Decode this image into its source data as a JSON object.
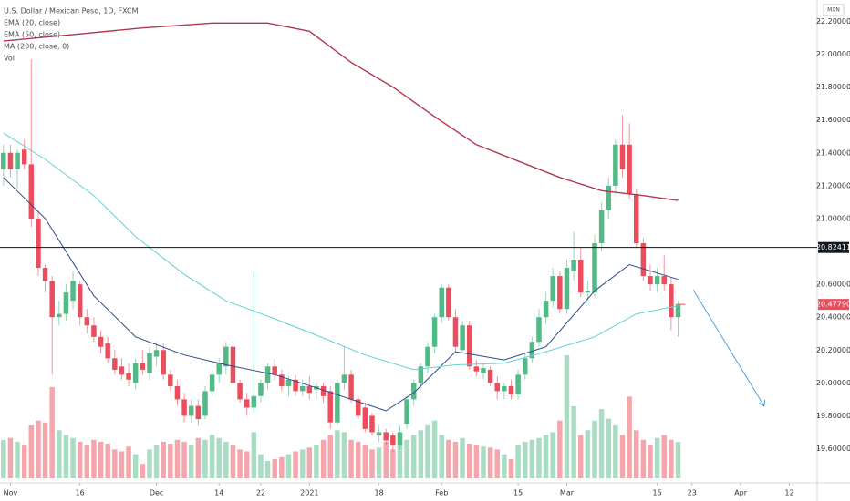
{
  "chart_data": {
    "type": "candlestick",
    "title": "U.S. Dollar / Mexican Peso, 1D, FXCM",
    "currency": "MXN",
    "volume_label": "Vol",
    "up_color": "#53b987",
    "down_color": "#eb4d5c",
    "open": [
      21.3,
      21.4,
      21.3,
      21.42,
      21.33,
      21.0,
      20.7,
      20.62,
      20.4,
      20.42,
      20.5,
      20.6,
      20.4,
      20.35,
      20.28,
      20.24,
      20.15,
      20.1,
      20.06,
      20.0,
      20.12,
      20.06,
      20.16,
      20.2,
      20.05,
      19.98,
      19.9,
      19.8,
      19.86,
      19.8,
      19.95,
      20.05,
      20.1,
      20.22,
      20.0,
      19.9,
      19.85,
      19.92,
      20.0,
      20.1,
      20.05,
      19.98,
      20.02,
      19.95,
      19.98,
      19.96,
      19.98,
      19.95,
      19.76,
      20.0,
      20.05,
      19.9,
      19.85,
      19.8,
      19.68,
      19.7,
      19.68,
      19.62,
      19.75,
      19.9,
      20.0,
      20.1,
      20.22,
      20.4,
      20.58,
      20.4,
      20.2,
      20.35,
      20.1,
      20.06,
      20.08,
      20.0,
      19.95,
      19.98,
      19.93,
      20.05,
      20.15,
      20.25,
      20.4,
      20.5,
      20.65,
      20.45,
      20.68,
      20.75,
      20.55,
      20.55,
      20.85,
      21.05,
      21.2,
      21.45,
      21.45,
      21.15,
      20.85,
      20.65,
      20.6,
      20.65,
      20.6,
      20.4
    ],
    "high": [
      21.45,
      21.45,
      21.42,
      21.48,
      21.97,
      21.05,
      20.72,
      20.65,
      20.5,
      20.6,
      20.68,
      20.62,
      20.45,
      20.4,
      20.32,
      20.28,
      20.2,
      20.15,
      20.12,
      20.15,
      20.2,
      20.22,
      20.25,
      20.24,
      20.08,
      20.02,
      19.94,
      19.9,
      19.9,
      19.98,
      20.08,
      20.15,
      20.25,
      20.25,
      20.02,
      19.94,
      20.68,
      20.02,
      20.12,
      20.15,
      20.08,
      20.04,
      20.05,
      20.02,
      20.04,
      20.0,
      20.0,
      19.98,
      20.02,
      20.22,
      20.08,
      19.92,
      19.88,
      19.82,
      19.74,
      19.72,
      19.7,
      19.74,
      19.92,
      20.02,
      20.12,
      20.25,
      20.42,
      20.6,
      20.6,
      20.45,
      20.38,
      20.38,
      20.14,
      20.12,
      20.1,
      20.04,
      20.0,
      20.02,
      20.08,
      20.18,
      20.28,
      20.45,
      20.55,
      20.7,
      20.68,
      20.75,
      20.92,
      20.82,
      20.62,
      20.9,
      21.1,
      21.25,
      21.48,
      21.63,
      21.58,
      21.18,
      20.88,
      20.72,
      20.7,
      20.78,
      20.64,
      20.5
    ],
    "low": [
      21.2,
      21.25,
      21.18,
      21.3,
      20.95,
      20.65,
      20.55,
      20.05,
      20.35,
      20.38,
      20.45,
      20.35,
      20.3,
      20.25,
      20.18,
      20.12,
      20.05,
      20.02,
      19.98,
      19.96,
      20.05,
      20.02,
      20.1,
      20.02,
      19.95,
      19.86,
      19.76,
      19.76,
      19.74,
      19.78,
      19.92,
      20.0,
      20.05,
      19.98,
      19.88,
      19.8,
      19.82,
      19.88,
      19.96,
      20.02,
      19.95,
      19.92,
      19.92,
      19.92,
      19.9,
      19.9,
      19.88,
      19.72,
      19.74,
      19.96,
      19.88,
      19.78,
      19.7,
      19.68,
      19.64,
      19.62,
      19.58,
      19.6,
      19.72,
      19.86,
      19.96,
      20.06,
      20.18,
      20.36,
      20.38,
      20.18,
      20.18,
      20.08,
      20.04,
      20.02,
      19.98,
      19.9,
      19.9,
      19.9,
      19.9,
      20.02,
      20.12,
      20.22,
      20.36,
      20.46,
      20.42,
      20.42,
      20.62,
      20.52,
      20.5,
      20.52,
      20.8,
      21.0,
      21.15,
      21.25,
      21.12,
      20.82,
      20.62,
      20.56,
      20.55,
      20.56,
      20.32,
      20.28
    ],
    "close": [
      21.4,
      21.3,
      21.4,
      21.33,
      21.0,
      20.7,
      20.62,
      20.4,
      20.42,
      20.55,
      20.62,
      20.4,
      20.35,
      20.28,
      20.22,
      20.15,
      20.08,
      20.05,
      20.02,
      20.12,
      20.08,
      20.18,
      20.2,
      20.05,
      19.98,
      19.9,
      19.8,
      19.86,
      19.78,
      19.95,
      20.05,
      20.12,
      20.22,
      20.0,
      19.9,
      19.85,
      19.92,
      20.0,
      20.1,
      20.05,
      19.98,
      20.02,
      19.95,
      19.98,
      19.94,
      19.98,
      19.92,
      19.76,
      20.0,
      20.05,
      19.9,
      19.8,
      19.72,
      19.7,
      19.7,
      19.65,
      19.62,
      19.7,
      19.9,
      20.0,
      20.1,
      20.22,
      20.4,
      20.58,
      20.4,
      20.22,
      20.35,
      20.1,
      20.07,
      20.09,
      20.0,
      19.95,
      19.98,
      19.93,
      20.05,
      20.15,
      20.25,
      20.4,
      20.5,
      20.65,
      20.45,
      20.7,
      20.75,
      20.55,
      20.56,
      20.85,
      21.05,
      21.2,
      21.45,
      21.3,
      21.15,
      20.85,
      20.65,
      20.6,
      20.65,
      20.6,
      20.4,
      20.48
    ],
    "volume": [
      40,
      42,
      38,
      35,
      55,
      60,
      58,
      95,
      50,
      45,
      42,
      38,
      35,
      40,
      38,
      36,
      30,
      28,
      33,
      25,
      15,
      30,
      35,
      38,
      36,
      40,
      38,
      35,
      42,
      40,
      45,
      42,
      38,
      35,
      30,
      28,
      48,
      25,
      18,
      20,
      22,
      25,
      28,
      30,
      32,
      35,
      40,
      45,
      50,
      48,
      40,
      38,
      35,
      30,
      32,
      38,
      30,
      35,
      40,
      45,
      50,
      55,
      60,
      45,
      40,
      38,
      42,
      36,
      35,
      33,
      32,
      30,
      25,
      20,
      35,
      38,
      40,
      42,
      45,
      48,
      60,
      128,
      75,
      45,
      50,
      60,
      72,
      62,
      55,
      45,
      85,
      50,
      40,
      35,
      42,
      45,
      40,
      38
    ],
    "series": [
      {
        "name": "EMA (20, close)",
        "color": "#2c4a8a",
        "x": [
          0,
          6,
          13,
          19,
          26,
          32,
          39,
          45,
          55,
          59,
          65,
          72,
          78,
          85,
          90,
          97
        ],
        "values": [
          21.25,
          21.0,
          20.53,
          20.28,
          20.17,
          20.11,
          20.05,
          19.97,
          19.83,
          19.94,
          20.19,
          20.14,
          20.22,
          20.56,
          20.72,
          20.63
        ]
      },
      {
        "name": "EMA (50, close)",
        "color": "#5fd3d6",
        "x": [
          0,
          6,
          13,
          19,
          26,
          32,
          39,
          45,
          52,
          59,
          65,
          72,
          78,
          85,
          91,
          97
        ],
        "values": [
          21.52,
          21.36,
          21.14,
          20.89,
          20.66,
          20.5,
          20.39,
          20.29,
          20.17,
          20.08,
          20.11,
          20.12,
          20.19,
          20.28,
          20.42,
          20.47
        ]
      },
      {
        "name": "MA (200, close, 0)",
        "color": "#b4384f",
        "x": [
          0,
          10,
          20,
          30,
          38,
          44,
          50,
          56,
          62,
          68,
          74,
          80,
          86,
          92,
          97
        ],
        "values": [
          22.08,
          22.12,
          22.16,
          22.19,
          22.19,
          22.14,
          21.95,
          21.8,
          21.62,
          21.45,
          21.35,
          21.25,
          21.17,
          21.14,
          21.11
        ]
      }
    ],
    "hline": {
      "value": 20.82411,
      "label": "20.82411"
    },
    "last_price": {
      "value": 20.4779,
      "label": "20.47790"
    },
    "ylim": [
      19.42,
      22.33
    ],
    "yticks": [
      {
        "value": 22.2,
        "label": "22.20000"
      },
      {
        "value": 22.0,
        "label": "22.00000"
      },
      {
        "value": 21.8,
        "label": "21.80000"
      },
      {
        "value": 21.6,
        "label": "21.60000"
      },
      {
        "value": 21.4,
        "label": "21.40000"
      },
      {
        "value": 21.2,
        "label": "21.20000"
      },
      {
        "value": 21.0,
        "label": "21.00000"
      },
      {
        "value": 20.6,
        "label": "20.60000"
      },
      {
        "value": 20.4,
        "label": "20.40000"
      },
      {
        "value": 20.2,
        "label": "20.20000"
      },
      {
        "value": 20.0,
        "label": "20.00000"
      },
      {
        "value": 19.8,
        "label": "19.80000"
      },
      {
        "value": 19.6,
        "label": "19.60000"
      }
    ],
    "xlim": [
      -0.5,
      117
    ],
    "xticks": [
      {
        "value": 1,
        "label": "Nov"
      },
      {
        "value": 11,
        "label": "16"
      },
      {
        "value": 22,
        "label": "Dec"
      },
      {
        "value": 31,
        "label": "14"
      },
      {
        "value": 37,
        "label": "22"
      },
      {
        "value": 44,
        "label": "2021"
      },
      {
        "value": 54,
        "label": "18"
      },
      {
        "value": 63,
        "label": "Feb"
      },
      {
        "value": 74,
        "label": "15"
      },
      {
        "value": 81,
        "label": "Mar"
      },
      {
        "value": 94,
        "label": "15"
      },
      {
        "value": 99,
        "label": "23"
      },
      {
        "value": 106,
        "label": "Apr"
      },
      {
        "value": 113,
        "label": "12"
      }
    ]
  }
}
